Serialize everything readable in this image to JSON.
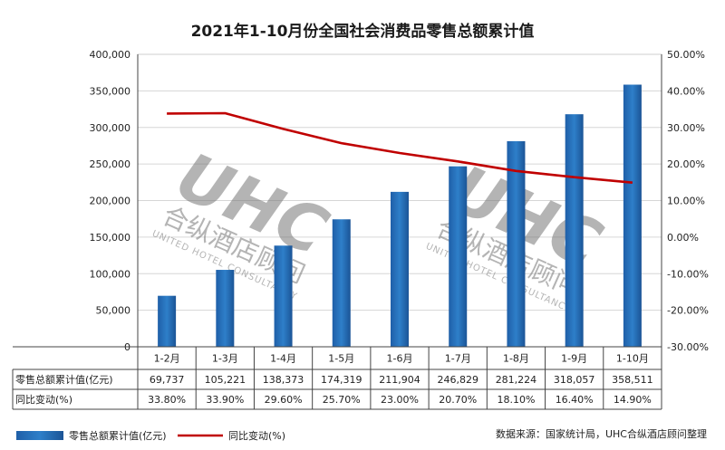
{
  "chart_data": {
    "type": "bar",
    "title": "2021年1-10月份全国社会消费品零售总额累计值",
    "categories": [
      "1-2月",
      "1-3月",
      "1-4月",
      "1-5月",
      "1-6月",
      "1-7月",
      "1-8月",
      "1-9月",
      "1-10月"
    ],
    "series": [
      {
        "name": "零售总额累计值(亿元)",
        "type": "bar",
        "axis": "left",
        "color": "#2e7fc9",
        "values": [
          69737,
          105221,
          138373,
          174319,
          211904,
          246829,
          281224,
          318057,
          358511
        ],
        "display": [
          "69,737",
          "105,221",
          "138,373",
          "174,319",
          "211,904",
          "246,829",
          "281,224",
          "318,057",
          "358,511"
        ]
      },
      {
        "name": "同比变动(%)",
        "type": "line",
        "axis": "right",
        "color": "#c00000",
        "values": [
          33.8,
          33.9,
          29.6,
          25.7,
          23.0,
          20.7,
          18.1,
          16.4,
          14.9
        ],
        "display": [
          "33.80%",
          "33.90%",
          "29.60%",
          "25.70%",
          "23.00%",
          "20.70%",
          "18.10%",
          "16.40%",
          "14.90%"
        ]
      }
    ],
    "y_left": {
      "min": 0,
      "max": 400000,
      "ticks": [
        "0",
        "50,000",
        "100,000",
        "150,000",
        "200,000",
        "250,000",
        "300,000",
        "350,000",
        "400,000"
      ]
    },
    "y_right": {
      "min": -30,
      "max": 50,
      "ticks": [
        "-30.00%",
        "-20.00%",
        "-10.00%",
        "0.00%",
        "10.00%",
        "20.00%",
        "30.00%",
        "40.00%",
        "50.00%"
      ]
    },
    "grid": true,
    "legend_position": "bottom-left",
    "source_note": "数据来源：国家统计局，UHC合纵酒店顾问整理"
  },
  "watermark": {
    "logo": "UHC",
    "cn": "合纵酒店顾问",
    "en": "UNITED HOTEL CONSULTANCY"
  }
}
